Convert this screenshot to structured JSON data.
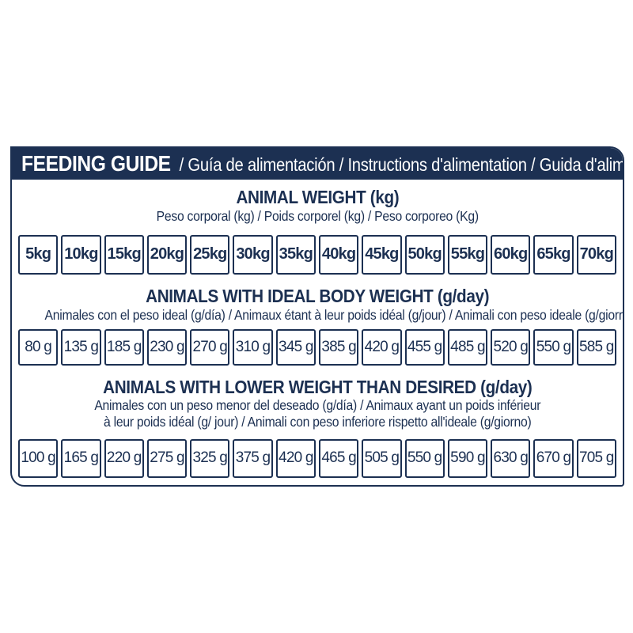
{
  "colors": {
    "navy": "#1c3052",
    "white": "#ffffff"
  },
  "header": {
    "title": "FEEDING GUIDE",
    "subtitle": "/ Guía de alimentación / Instructions d'alimentation / Guida d'alimentazione"
  },
  "sections": [
    {
      "title": "ANIMAL WEIGHT (kg)",
      "subtitle": "Peso corporal (kg) / Poids corporel (kg) / Peso corporeo (Kg)",
      "cells": [
        "5kg",
        "10kg",
        "15kg",
        "20kg",
        "25kg",
        "30kg",
        "35kg",
        "40kg",
        "45kg",
        "50kg",
        "55kg",
        "60kg",
        "65kg",
        "70kg"
      ]
    },
    {
      "title": "ANIMALS WITH IDEAL BODY WEIGHT (g/day)",
      "subtitle": "Animales con el peso ideal (g/día) / Animaux étant à leur poids idéal (g/jour) / Animali con peso ideale (g/giorno)",
      "cells": [
        "80 g",
        "135 g",
        "185 g",
        "230 g",
        "270 g",
        "310 g",
        "345 g",
        "385 g",
        "420 g",
        "455 g",
        "485 g",
        "520 g",
        "550 g",
        "585 g"
      ]
    },
    {
      "title": "ANIMALS WITH LOWER WEIGHT THAN DESIRED (g/day)",
      "subtitle_line1": "Animales con un peso menor del deseado (g/día) / Animaux ayant un poids inférieur",
      "subtitle_line2": "à leur poids idéal (g/ jour) / Animali con peso inferiore rispetto all'ideale (g/giorno)",
      "cells": [
        "100 g",
        "165 g",
        "220 g",
        "275 g",
        "325 g",
        "375 g",
        "420 g",
        "465 g",
        "505 g",
        "550 g",
        "590 g",
        "630 g",
        "670 g",
        "705 g"
      ]
    }
  ]
}
